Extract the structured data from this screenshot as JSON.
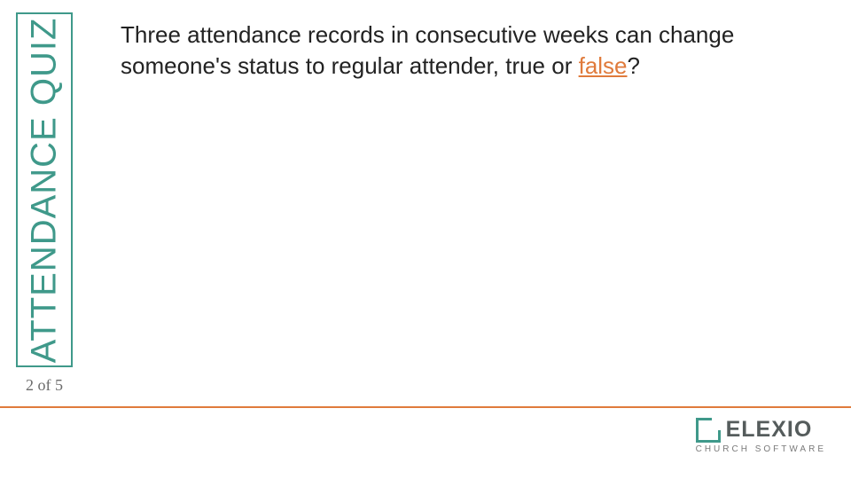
{
  "colors": {
    "teal": "#3f998a",
    "orange": "#e07b3c",
    "body_text": "#222222",
    "page_text": "#6b6b6b",
    "logo_word": "#555c5c",
    "logo_sub": "#7a7a7a",
    "background": "#ffffff"
  },
  "typography": {
    "title_fontsize": 40,
    "question_fontsize": 26,
    "pagenum_fontsize": 18,
    "logo_word_fontsize": 25,
    "logo_sub_fontsize": 10
  },
  "slide": {
    "title": "ATTENDANCE QUIZ",
    "page_current": 2,
    "page_total": 5,
    "page_label": "2 of 5",
    "question_pre": "Three attendance records in consecutive weeks can change someone's status to regular attender, true or ",
    "answer_word": "false",
    "question_post": "?"
  },
  "logo": {
    "word": "ELEXIO",
    "sub": "CHURCH SOFTWARE"
  }
}
